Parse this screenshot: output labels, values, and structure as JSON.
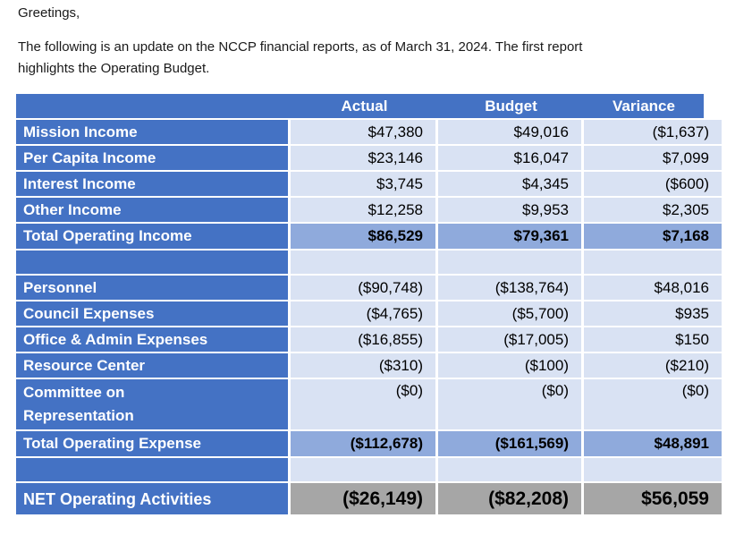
{
  "intro": {
    "greeting": "Greetings,",
    "body": "The following is an update on the NCCP financial reports, as of March 31, 2024.  The first report\nhighlights the Operating Budget."
  },
  "table": {
    "columns": [
      "Actual",
      "Budget",
      "Variance"
    ],
    "rows": [
      {
        "type": "normal",
        "label": "Mission Income",
        "actual": "$47,380",
        "budget": "$49,016",
        "variance": "($1,637)"
      },
      {
        "type": "normal",
        "label": "Per Capita Income",
        "actual": "$23,146",
        "budget": "$16,047",
        "variance": "$7,099"
      },
      {
        "type": "normal",
        "label": "Interest Income",
        "actual": "$3,745",
        "budget": "$4,345",
        "variance": "($600)"
      },
      {
        "type": "normal",
        "label": "Other Income",
        "actual": "$12,258",
        "budget": "$9,953",
        "variance": "$2,305"
      },
      {
        "type": "total",
        "label": "Total Operating Income",
        "actual": "$86,529",
        "budget": "$79,361",
        "variance": "$7,168"
      },
      {
        "type": "blank",
        "label": "",
        "actual": "",
        "budget": "",
        "variance": ""
      },
      {
        "type": "normal",
        "label": "Personnel",
        "actual": "($90,748)",
        "budget": "($138,764)",
        "variance": "$48,016"
      },
      {
        "type": "normal",
        "label": "Council Expenses",
        "actual": "($4,765)",
        "budget": "($5,700)",
        "variance": "$935"
      },
      {
        "type": "normal",
        "label": "Office & Admin Expenses",
        "actual": "($16,855)",
        "budget": "($17,005)",
        "variance": "$150"
      },
      {
        "type": "normal",
        "label": "Resource Center",
        "actual": "($310)",
        "budget": "($100)",
        "variance": "($210)"
      },
      {
        "type": "tall",
        "label": "Committee on\nRepresentation",
        "actual": "($0)",
        "budget": "($0)",
        "variance": "($0)"
      },
      {
        "type": "total",
        "label": "Total Operating Expense",
        "actual": "($112,678)",
        "budget": "($161,569)",
        "variance": "$48,891"
      },
      {
        "type": "blank",
        "label": "",
        "actual": "",
        "budget": "",
        "variance": ""
      },
      {
        "type": "net",
        "label": "NET Operating Activities",
        "actual": "($26,149)",
        "budget": "($82,208)",
        "variance": "$56,059"
      }
    ],
    "colors": {
      "header_blue": "#4472C4",
      "label_blue": "#4472C4",
      "cell_light_blue": "#D9E2F3",
      "total_medium_blue": "#8FAADC",
      "net_gray": "#A6A6A6",
      "border_white": "#FFFFFF"
    }
  }
}
